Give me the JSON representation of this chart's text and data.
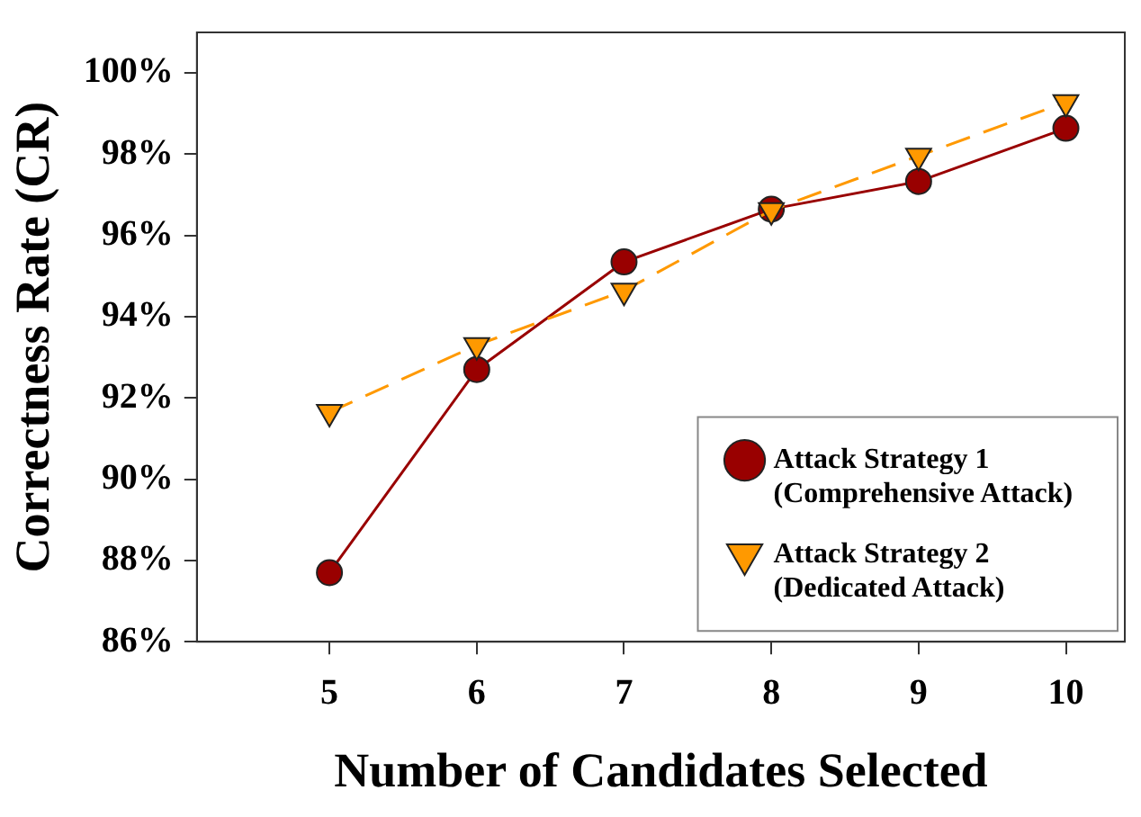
{
  "chart_data": {
    "type": "line",
    "xlabel": "Number of Candidates Selected",
    "ylabel": "Correctness Rate (CR)",
    "x": [
      5,
      6,
      7,
      8,
      9,
      10
    ],
    "series": [
      {
        "name": "Attack Strategy 1 (Comprehensive Attack)",
        "color": "#990000",
        "marker": "circle",
        "line_style": "solid",
        "values": [
          87.7,
          92.7,
          95.35,
          96.65,
          97.33,
          98.64
        ]
      },
      {
        "name": "Attack Strategy 2 (Dedicated Attack)",
        "color": "#ff9900",
        "marker": "triangle",
        "line_style": "dashed",
        "values": [
          91.65,
          93.3,
          94.64,
          96.62,
          97.96,
          99.28
        ]
      }
    ],
    "xlim": [
      4.1,
      10.4
    ],
    "xticks": [
      5,
      6,
      7,
      8,
      9,
      10
    ],
    "ylim": [
      86,
      101
    ],
    "yticks": [
      {
        "value": 86,
        "label": "86%"
      },
      {
        "value": 88,
        "label": "88%"
      },
      {
        "value": 90,
        "label": "90%"
      },
      {
        "value": 92,
        "label": "92%"
      },
      {
        "value": 94,
        "label": "94%"
      },
      {
        "value": 96,
        "label": "96%"
      },
      {
        "value": 98,
        "label": "98%"
      },
      {
        "value": 100,
        "label": "100%"
      }
    ],
    "grid": false,
    "legend": "bottom right"
  }
}
